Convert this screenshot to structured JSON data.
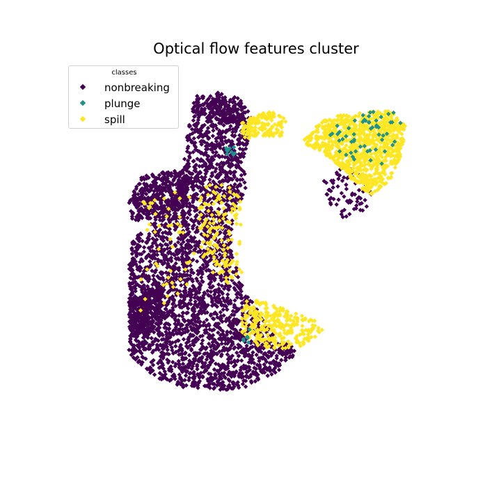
{
  "chart_data": {
    "type": "scatter",
    "title": "Optical flow features cluster",
    "xlabel": "",
    "ylabel": "",
    "axes_visible": false,
    "marker": "diamond",
    "legend": {
      "title": "classes",
      "placement": "top-left",
      "entries": [
        {
          "label": "nonbreaking",
          "color": "#440154"
        },
        {
          "label": "plunge",
          "color": "#21918c"
        },
        {
          "label": "spill",
          "color": "#fde725"
        }
      ]
    },
    "xlim": [
      0,
      100
    ],
    "ylim": [
      0,
      100
    ],
    "series": [
      {
        "name": "nonbreaking",
        "color": "#440154",
        "regions": [
          {
            "kind": "poly",
            "weight": 3000,
            "points": [
              [
                34,
                91
              ],
              [
                41,
                92
              ],
              [
                46,
                90
              ],
              [
                49,
                84
              ],
              [
                47,
                76
              ],
              [
                47,
                66
              ],
              [
                44,
                58
              ],
              [
                43,
                50
              ],
              [
                46,
                40
              ],
              [
                51,
                31
              ],
              [
                56,
                24
              ],
              [
                59,
                21
              ],
              [
                55,
                16
              ],
              [
                47,
                12
              ],
              [
                40,
                11
              ],
              [
                31,
                12
              ],
              [
                23,
                15
              ],
              [
                17,
                21
              ],
              [
                17,
                28
              ],
              [
                17,
                37
              ],
              [
                17,
                45
              ],
              [
                18,
                52
              ],
              [
                24,
                58
              ],
              [
                29,
                64
              ],
              [
                31,
                72
              ],
              [
                32,
                82
              ]
            ]
          },
          {
            "kind": "poly",
            "weight": 420,
            "points": [
              [
                24,
                58
              ],
              [
                31,
                61
              ],
              [
                33,
                69
              ],
              [
                29,
                71
              ],
              [
                20,
                69
              ],
              [
                17,
                62
              ],
              [
                18,
                57
              ]
            ]
          },
          {
            "kind": "poly",
            "weight": 320,
            "points": [
              [
                20,
                38
              ],
              [
                26,
                40
              ],
              [
                25,
                30
              ],
              [
                21,
                25
              ],
              [
                17,
                28
              ],
              [
                17,
                35
              ]
            ]
          },
          {
            "kind": "poly",
            "weight": 150,
            "points": [
              [
                40,
                91
              ],
              [
                46,
                89
              ],
              [
                46,
                83
              ],
              [
                40,
                84
              ],
              [
                37,
                88
              ]
            ]
          },
          {
            "kind": "poly",
            "weight": 80,
            "points": [
              [
                66,
                67
              ],
              [
                72,
                72
              ],
              [
                75,
                71
              ],
              [
                80,
                66
              ],
              [
                78,
                60
              ],
              [
                72,
                58
              ],
              [
                68,
                62
              ]
            ]
          },
          {
            "kind": "poly",
            "weight": 30,
            "points": [
              [
                55,
                21
              ],
              [
                59,
                20
              ],
              [
                60,
                23
              ],
              [
                56,
                24
              ]
            ]
          }
        ]
      },
      {
        "name": "plunge",
        "color": "#21918c",
        "regions": [
          {
            "kind": "poly",
            "weight": 55,
            "points": [
              [
                68,
                82
              ],
              [
                76,
                86
              ],
              [
                83,
                89
              ],
              [
                87,
                86
              ],
              [
                86,
                78
              ],
              [
                82,
                72
              ],
              [
                77,
                70
              ],
              [
                72,
                75
              ],
              [
                68,
                79
              ]
            ]
          },
          {
            "kind": "poly",
            "weight": 10,
            "points": [
              [
                42,
                77
              ],
              [
                45,
                78
              ],
              [
                45,
                75
              ],
              [
                42,
                75
              ]
            ]
          },
          {
            "kind": "poly",
            "weight": 6,
            "points": [
              [
                46,
                28
              ],
              [
                50,
                28
              ],
              [
                50,
                24
              ],
              [
                46,
                24
              ]
            ]
          }
        ]
      },
      {
        "name": "spill",
        "color": "#fde725",
        "regions": [
          {
            "kind": "poly",
            "weight": 950,
            "points": [
              [
                62,
                79
              ],
              [
                66,
                84
              ],
              [
                72,
                86
              ],
              [
                79,
                87
              ],
              [
                84,
                87
              ],
              [
                88,
                83
              ],
              [
                87,
                75
              ],
              [
                84,
                68
              ],
              [
                80,
                64
              ],
              [
                76,
                66
              ],
              [
                72,
                71
              ],
              [
                66,
                76
              ],
              [
                63,
                77
              ]
            ]
          },
          {
            "kind": "poly",
            "weight": 300,
            "points": [
              [
                47,
                36
              ],
              [
                52,
                35
              ],
              [
                58,
                33
              ],
              [
                63,
                31
              ],
              [
                66,
                30
              ],
              [
                67,
                27
              ],
              [
                62,
                23
              ],
              [
                56,
                22
              ],
              [
                50,
                23
              ],
              [
                46,
                27
              ],
              [
                46,
                32
              ]
            ]
          },
          {
            "kind": "poly",
            "weight": 150,
            "points": [
              [
                45,
                83
              ],
              [
                50,
                86
              ],
              [
                54,
                87
              ],
              [
                58,
                84
              ],
              [
                56,
                80
              ],
              [
                51,
                80
              ],
              [
                47,
                79
              ]
            ]
          },
          {
            "kind": "poly",
            "weight": 140,
            "points": [
              [
                35,
                66
              ],
              [
                41,
                68
              ],
              [
                46,
                64
              ],
              [
                46,
                40
              ],
              [
                41,
                40
              ],
              [
                36,
                46
              ],
              [
                35,
                55
              ]
            ]
          },
          {
            "kind": "poly",
            "weight": 50,
            "points": [
              [
                20,
                65
              ],
              [
                34,
                68
              ],
              [
                34,
                40
              ],
              [
                20,
                30
              ]
            ]
          }
        ]
      }
    ]
  }
}
